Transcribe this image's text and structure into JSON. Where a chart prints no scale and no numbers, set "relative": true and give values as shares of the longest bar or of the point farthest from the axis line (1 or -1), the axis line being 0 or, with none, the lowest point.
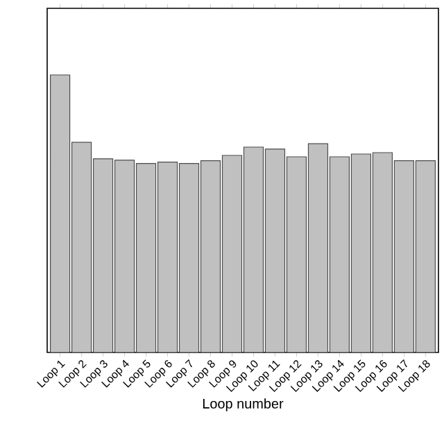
{
  "chart_data": {
    "type": "bar",
    "xlabel": "Loop number",
    "relative": true,
    "color": "#c0c0c0",
    "categories": [
      "Loop 1",
      "Loop 2",
      "Loop 3",
      "Loop 4",
      "Loop 5",
      "Loop 6",
      "Loop 7",
      "Loop 8",
      "Loop 9",
      "Loop 10",
      "Loop 11",
      "Loop 12",
      "Loop 13",
      "Loop 14",
      "Loop 15",
      "Loop 16",
      "Loop 17",
      "Loop 18"
    ],
    "values": [
      1,
      0.757,
      0.698,
      0.693,
      0.681,
      0.686,
      0.681,
      0.691,
      0.71,
      0.74,
      0.733,
      0.705,
      0.752,
      0.705,
      0.715,
      0.72,
      0.691,
      0.691
    ]
  }
}
